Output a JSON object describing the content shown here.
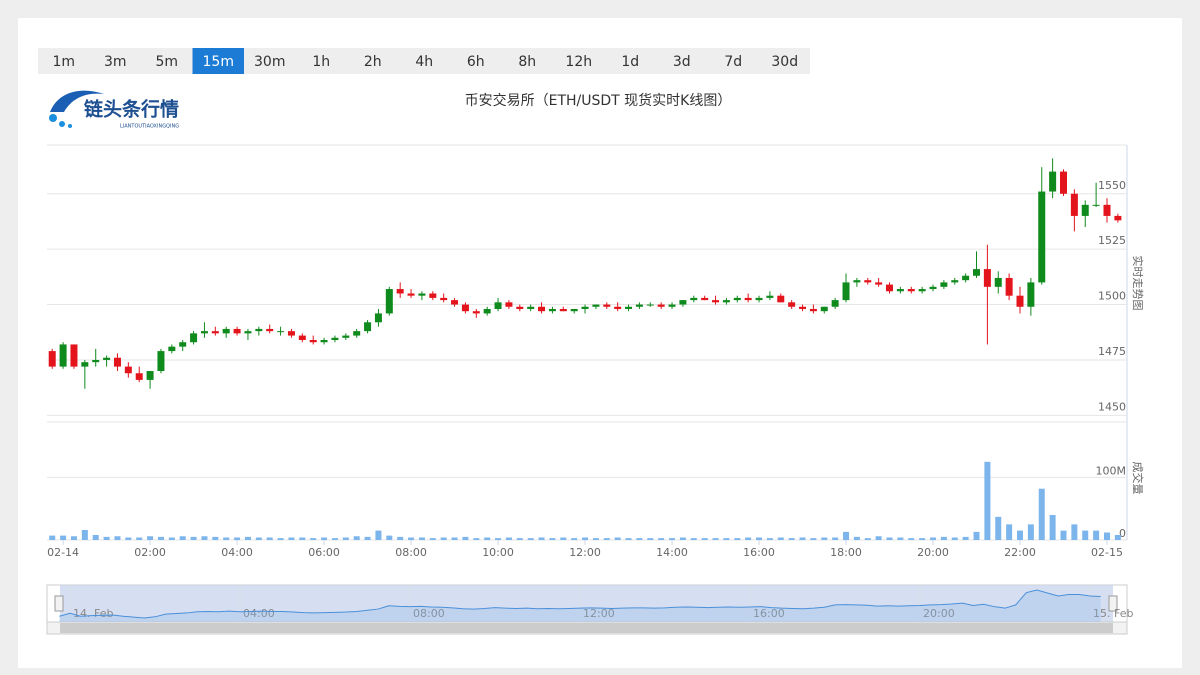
{
  "intervals": [
    "1m",
    "3m",
    "5m",
    "15m",
    "30m",
    "1h",
    "2h",
    "4h",
    "6h",
    "8h",
    "12h",
    "1d",
    "3d",
    "7d",
    "30d"
  ],
  "active_interval": "15m",
  "logo": {
    "name": "链头条行情",
    "subtitle": "LIANTOUTIAOXINGQING"
  },
  "chart_data": {
    "type": "candlestick",
    "title": "币安交易所（ETH/USDT 现货实时K线图）",
    "y_axis_title": "实时走势图",
    "volume_axis_title": "成交量",
    "up_color": "#0f8a1c",
    "down_color": "#e3141c",
    "volume_color": "#7cb5ec",
    "x": [
      -0.25,
      0,
      0.25,
      0.5,
      0.75,
      1,
      1.25,
      1.5,
      1.75,
      2,
      2.25,
      2.5,
      2.75,
      3,
      3.25,
      3.5,
      3.75,
      4,
      4.25,
      4.5,
      4.75,
      5,
      5.25,
      5.5,
      5.75,
      6,
      6.25,
      6.5,
      6.75,
      7,
      7.25,
      7.5,
      7.75,
      8,
      8.25,
      8.5,
      8.75,
      9,
      9.25,
      9.5,
      9.75,
      10,
      10.25,
      10.5,
      10.75,
      11,
      11.25,
      11.5,
      11.75,
      12,
      12.25,
      12.5,
      12.75,
      13,
      13.25,
      13.5,
      13.75,
      14,
      14.25,
      14.5,
      14.75,
      15,
      15.25,
      15.5,
      15.75,
      16,
      16.25,
      16.5,
      16.75,
      17,
      17.25,
      17.5,
      17.75,
      18,
      18.25,
      18.5,
      18.75,
      19,
      19.25,
      19.5,
      19.75,
      20,
      20.25,
      20.5,
      20.75,
      21,
      21.25,
      21.5,
      21.75,
      22,
      22.25,
      22.5,
      22.75,
      23,
      23.25,
      23.5,
      23.75,
      24,
      24.25
    ],
    "open": [
      1479,
      1472,
      1482,
      1472,
      1474,
      1475,
      1476,
      1472,
      1469,
      1466,
      1470,
      1479,
      1481,
      1483,
      1487,
      1488,
      1487,
      1489,
      1487,
      1488,
      1489,
      1488,
      1488,
      1486,
      1484,
      1483,
      1484,
      1485,
      1486,
      1488,
      1492,
      1496,
      1507,
      1505,
      1504,
      1505,
      1503,
      1502,
      1500,
      1497,
      1496,
      1498,
      1501,
      1499,
      1498,
      1499,
      1497,
      1498,
      1497,
      1498,
      1499,
      1500,
      1499,
      1498,
      1499,
      1500,
      1500,
      1499,
      1500,
      1502,
      1503,
      1502,
      1501,
      1502,
      1503,
      1502,
      1503,
      1504,
      1501,
      1499,
      1498,
      1497,
      1499,
      1502,
      1510,
      1511,
      1510,
      1509,
      1506,
      1507,
      1506,
      1507,
      1508,
      1510,
      1511,
      1513,
      1516,
      1508,
      1512,
      1504,
      1499,
      1510,
      1551,
      1560,
      1550,
      1540,
      1545,
      1545,
      1540
    ],
    "high": [
      1480,
      1483,
      1482,
      1475,
      1480,
      1477,
      1478,
      1474,
      1472,
      1470,
      1480,
      1482,
      1484,
      1488,
      1492,
      1490,
      1490,
      1490,
      1489,
      1490,
      1491,
      1490,
      1489,
      1487,
      1486,
      1485,
      1486,
      1487,
      1489,
      1493,
      1498,
      1508,
      1510,
      1507,
      1506,
      1506,
      1505,
      1503,
      1501,
      1498,
      1499,
      1503,
      1502,
      1500,
      1500,
      1501,
      1499,
      1499,
      1498,
      1500,
      1500,
      1501,
      1501,
      1500,
      1501,
      1501,
      1501,
      1501,
      1502,
      1504,
      1504,
      1504,
      1503,
      1504,
      1505,
      1504,
      1506,
      1505,
      1502,
      1500,
      1500,
      1499,
      1503,
      1514,
      1512,
      1512,
      1512,
      1510,
      1508,
      1508,
      1508,
      1509,
      1511,
      1512,
      1514,
      1524,
      1527,
      1515,
      1514,
      1508,
      1512,
      1562,
      1566,
      1561,
      1552,
      1547,
      1555,
      1548,
      1541
    ],
    "low": [
      1471,
      1471,
      1471,
      1462,
      1472,
      1472,
      1470,
      1467,
      1465,
      1462,
      1469,
      1478,
      1479,
      1482,
      1485,
      1486,
      1485,
      1486,
      1484,
      1486,
      1487,
      1486,
      1485,
      1483,
      1482,
      1482,
      1483,
      1484,
      1485,
      1487,
      1490,
      1495,
      1503,
      1503,
      1502,
      1502,
      1501,
      1499,
      1496,
      1494,
      1495,
      1497,
      1498,
      1497,
      1497,
      1496,
      1496,
      1497,
      1496,
      1496,
      1498,
      1498,
      1497,
      1497,
      1498,
      1499,
      1498,
      1498,
      1499,
      1501,
      1502,
      1500,
      1500,
      1501,
      1501,
      1501,
      1502,
      1501,
      1498,
      1497,
      1496,
      1496,
      1498,
      1501,
      1508,
      1509,
      1508,
      1505,
      1505,
      1505,
      1505,
      1506,
      1507,
      1509,
      1510,
      1512,
      1482,
      1505,
      1502,
      1496,
      1495,
      1509,
      1548,
      1549,
      1533,
      1535,
      1544,
      1537,
      1537
    ],
    "close": [
      1472,
      1482,
      1472,
      1474,
      1475,
      1476,
      1472,
      1469,
      1466,
      1470,
      1479,
      1481,
      1483,
      1487,
      1488,
      1487,
      1489,
      1487,
      1488,
      1489,
      1488,
      1488,
      1486,
      1484,
      1483,
      1484,
      1485,
      1486,
      1488,
      1492,
      1496,
      1507,
      1505,
      1504,
      1505,
      1503,
      1502,
      1500,
      1497,
      1496,
      1498,
      1501,
      1499,
      1498,
      1499,
      1497,
      1498,
      1497,
      1498,
      1499,
      1500,
      1499,
      1498,
      1499,
      1500,
      1500,
      1499,
      1500,
      1502,
      1503,
      1502,
      1501,
      1502,
      1503,
      1502,
      1503,
      1504,
      1501,
      1499,
      1498,
      1497,
      1499,
      1502,
      1510,
      1511,
      1510,
      1509,
      1506,
      1507,
      1506,
      1507,
      1508,
      1510,
      1511,
      1513,
      1516,
      1508,
      1512,
      1504,
      1499,
      1510,
      1551,
      1560,
      1550,
      1540,
      1545,
      1545,
      1540,
      1538
    ],
    "volume": [
      7,
      7,
      6,
      16,
      8,
      5,
      6,
      4,
      4,
      6,
      5,
      4,
      6,
      5,
      6,
      5,
      4,
      4,
      5,
      4,
      4,
      3,
      4,
      4,
      3,
      4,
      3,
      4,
      6,
      5,
      15,
      7,
      5,
      4,
      4,
      3,
      4,
      4,
      5,
      3,
      4,
      3,
      4,
      3,
      3,
      4,
      3,
      4,
      3,
      4,
      3,
      3,
      4,
      3,
      3,
      3,
      3,
      3,
      4,
      3,
      3,
      3,
      3,
      3,
      4,
      4,
      3,
      4,
      3,
      4,
      3,
      4,
      4,
      13,
      5,
      3,
      6,
      4,
      4,
      3,
      3,
      4,
      5,
      4,
      5,
      13,
      125,
      37,
      25,
      15,
      25,
      82,
      40,
      15,
      25,
      15,
      15,
      12,
      8
    ],
    "xlim": [
      -0.37,
      24.46
    ],
    "xticks": [
      {
        "value": 0,
        "label": "02-14"
      },
      {
        "value": 2,
        "label": "02:00"
      },
      {
        "value": 4,
        "label": "04:00"
      },
      {
        "value": 6,
        "label": "06:00"
      },
      {
        "value": 8,
        "label": "08:00"
      },
      {
        "value": 10,
        "label": "10:00"
      },
      {
        "value": 12,
        "label": "12:00"
      },
      {
        "value": 14,
        "label": "14:00"
      },
      {
        "value": 16,
        "label": "16:00"
      },
      {
        "value": 18,
        "label": "18:00"
      },
      {
        "value": 20,
        "label": "20:00"
      },
      {
        "value": 22,
        "label": "22:00"
      },
      {
        "value": 24,
        "label": "02-15"
      }
    ],
    "ylim": [
      1447,
      1572
    ],
    "yticks": [
      1450,
      1475,
      1500,
      1525,
      1550
    ],
    "volume_lim": [
      0,
      187
    ],
    "volume_ticks": [
      0,
      {
        "value": 100,
        "label": "100M"
      }
    ],
    "navigator": {
      "xticks": [
        {
          "value": 0,
          "label": "14. Feb"
        },
        {
          "value": 4,
          "label": "04:00"
        },
        {
          "value": 8,
          "label": "08:00"
        },
        {
          "value": 12,
          "label": "12:00"
        },
        {
          "value": 16,
          "label": "16:00"
        },
        {
          "value": 20,
          "label": "20:00"
        },
        {
          "value": 24,
          "label": "15. Feb"
        }
      ]
    }
  }
}
